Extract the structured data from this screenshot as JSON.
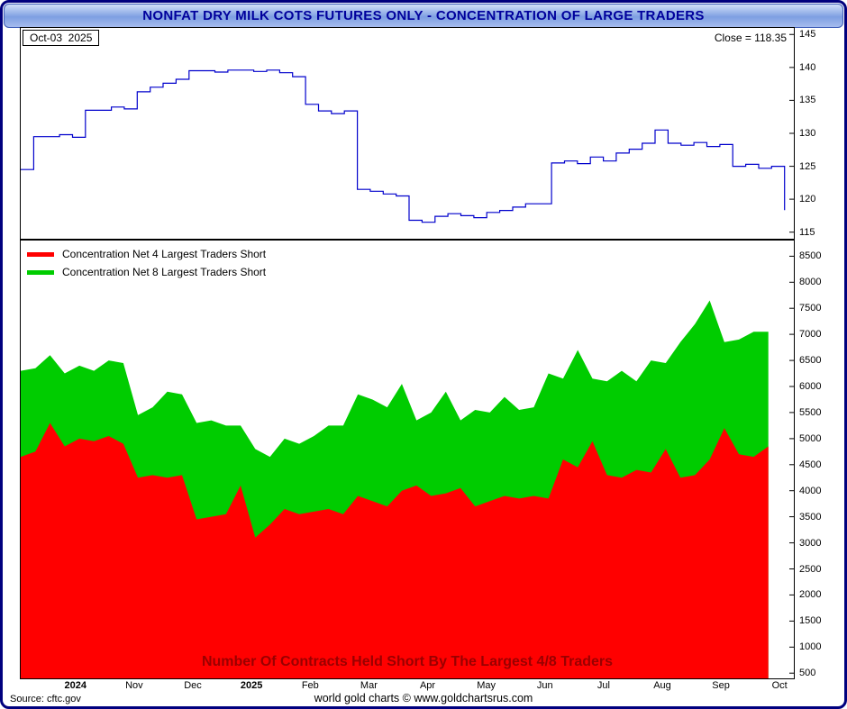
{
  "window": {
    "title": "NONFAT DRY MILK COTS FUTURES ONLY - CONCENTRATION OF LARGE TRADERS"
  },
  "price_panel": {
    "date_label": "Oct-03  2025",
    "close_label": "Close = 118.35",
    "close_value": 118.35
  },
  "legend": {
    "items": [
      {
        "label": "Concentration Net 4 Largest Traders Short",
        "color": "#ff0000"
      },
      {
        "label": "Concentration Net 8 Largest Traders Short",
        "color": "#00cc00"
      }
    ]
  },
  "caption": "Number Of Contracts Held Short By The Largest 4/8 Traders",
  "footer": {
    "source": "Source: cftc.gov",
    "credit": "world gold charts © www.goldchartsrus.com"
  },
  "x_axis": {
    "labels": [
      "2024",
      "Nov",
      "Dec",
      "2025",
      "Feb",
      "Mar",
      "Apr",
      "May",
      "Jun",
      "Jul",
      "Aug",
      "Sep",
      "Oct"
    ]
  },
  "chart_data": [
    {
      "type": "line",
      "name": "futures-price",
      "title": "Nonfat Dry Milk futures price (weekly)",
      "color": "#0000cc",
      "ylim": [
        114,
        146
      ],
      "yticks": [
        145,
        140,
        135,
        130,
        125,
        120,
        115
      ],
      "grid": false,
      "legend_position": "none",
      "values": [
        124.5,
        129.5,
        129.5,
        129.8,
        129.4,
        133.5,
        133.5,
        134.0,
        133.7,
        136.3,
        137.0,
        137.6,
        138.2,
        139.5,
        139.5,
        139.3,
        139.6,
        139.6,
        139.4,
        139.6,
        139.2,
        138.6,
        134.4,
        133.4,
        133.0,
        133.4,
        121.5,
        121.2,
        120.8,
        120.5,
        116.8,
        116.5,
        117.4,
        117.8,
        117.5,
        117.2,
        118.0,
        118.3,
        118.8,
        119.3,
        119.3,
        125.5,
        125.8,
        125.4,
        126.4,
        125.8,
        127.0,
        127.6,
        128.5,
        130.5,
        128.5,
        128.2,
        128.6,
        128.0,
        128.3,
        125.0,
        125.3,
        124.7,
        125.0,
        118.35
      ]
    },
    {
      "type": "area",
      "name": "largest-traders-short",
      "title": "Number Of Contracts Held Short By The Largest 4/8 Traders",
      "ylim": [
        400,
        8800
      ],
      "yticks": [
        8500,
        8000,
        7500,
        7000,
        6500,
        6000,
        5500,
        5000,
        4500,
        4000,
        3500,
        3000,
        2500,
        2000,
        1500,
        1000,
        500
      ],
      "grid": false,
      "legend_position": "top-left",
      "series": [
        {
          "name": "Concentration Net 8 Largest Traders Short",
          "color": "#00cc00",
          "values": [
            6300,
            6350,
            6600,
            6250,
            6400,
            6300,
            6500,
            6450,
            5450,
            5600,
            5900,
            5850,
            5300,
            5350,
            5250,
            5250,
            4800,
            4650,
            5000,
            4900,
            5050,
            5250,
            5250,
            5850,
            5750,
            5600,
            6050,
            5350,
            5500,
            5900,
            5350,
            5550,
            5500,
            5800,
            5550,
            5600,
            6250,
            6150,
            6700,
            6150,
            6100,
            6300,
            6100,
            6500,
            6450,
            6850,
            7200,
            7650,
            6850,
            6900,
            7050,
            7050
          ]
        },
        {
          "name": "Concentration Net 4 Largest Traders Short",
          "color": "#ff0000",
          "values": [
            4650,
            4750,
            5300,
            4850,
            5000,
            4950,
            5050,
            4900,
            4250,
            4300,
            4250,
            4300,
            3450,
            3500,
            3550,
            4100,
            3100,
            3350,
            3650,
            3550,
            3600,
            3650,
            3550,
            3900,
            3800,
            3700,
            4000,
            4100,
            3900,
            3950,
            4050,
            3700,
            3800,
            3900,
            3850,
            3900,
            3850,
            4600,
            4450,
            4950,
            4300,
            4250,
            4400,
            4350,
            4800,
            4250,
            4300,
            4600,
            5200,
            4700,
            4650,
            4850
          ]
        }
      ]
    }
  ]
}
